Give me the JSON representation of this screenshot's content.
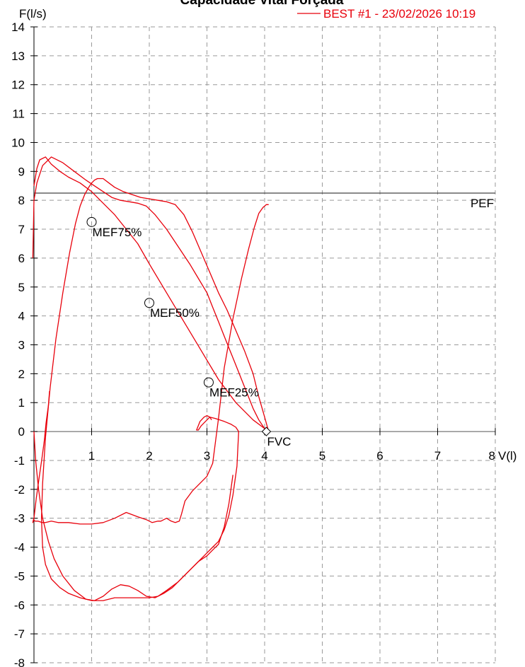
{
  "chart_data": {
    "type": "line",
    "title": "Capacidade Vital Forçada",
    "xlabel": "V(l)",
    "ylabel": "F(l/s)",
    "xlim": [
      0,
      8
    ],
    "ylim": [
      -8,
      14
    ],
    "x_ticks": [
      "1",
      "2",
      "3",
      "4",
      "5",
      "6",
      "7",
      "8"
    ],
    "y_ticks": [
      "14",
      "13",
      "12",
      "11",
      "10",
      "9",
      "8",
      "7",
      "6",
      "5",
      "4",
      "3",
      "2",
      "1",
      "0",
      "-1",
      "-2",
      "-3",
      "-4",
      "-5",
      "-6",
      "-7",
      "-8"
    ],
    "grid": true,
    "grid_style": "dashed",
    "legend": {
      "position": "top-right",
      "entries": [
        "BEST #1 - 23/02/2026 10:19"
      ]
    },
    "series": [
      {
        "name": "BEST #1 - 23/02/2026 10:19",
        "color": "#e8000b",
        "curves": [
          {
            "x": [
              0.27,
              0.25,
              0.21,
              0.18,
              0.14,
              0.09,
              0.04,
              0.0,
              -0.02,
              -0.01,
              0.02,
              0.07,
              0.14,
              0.2,
              0.3,
              0.42,
              0.6,
              0.8,
              1.0,
              1.2,
              1.4,
              1.6,
              1.8,
              1.95,
              2.05,
              2.15,
              2.2,
              2.3,
              2.38,
              2.45,
              2.52,
              2.56,
              2.62,
              2.75,
              2.9,
              3.0,
              3.1,
              3.2,
              3.3,
              3.45,
              3.6,
              3.72,
              3.82,
              3.9,
              3.97,
              4.03,
              4.07
            ],
            "y": [
              1.4,
              0.9,
              0.3,
              -0.3,
              -0.9,
              -1.6,
              -2.3,
              -3.0,
              -3.15,
              -3.05,
              -3.1,
              -3.1,
              -3.15,
              -3.15,
              -3.1,
              -3.15,
              -3.15,
              -3.2,
              -3.2,
              -3.15,
              -3.0,
              -2.8,
              -2.95,
              -3.05,
              -3.15,
              -3.1,
              -3.1,
              -3.0,
              -3.1,
              -3.15,
              -3.1,
              -2.85,
              -2.4,
              -2.05,
              -1.75,
              -1.55,
              -1.1,
              0.45,
              2.2,
              3.9,
              5.3,
              6.3,
              7.05,
              7.55,
              7.75,
              7.85,
              7.85
            ]
          },
          {
            "x": [
              4.07,
              4.0,
              3.9,
              3.8,
              3.65,
              3.5,
              3.35,
              3.2,
              3.05,
              2.9,
              2.75,
              2.6,
              2.45,
              2.3,
              2.15,
              2.0,
              1.85,
              1.7,
              1.55,
              1.4,
              1.3,
              1.2,
              1.1,
              1.05,
              1.0,
              0.95,
              0.88,
              0.8,
              0.72,
              0.62,
              0.5,
              0.38,
              0.28,
              0.2,
              0.15,
              0.13,
              0.15,
              0.2,
              0.3,
              0.45,
              0.6,
              0.8,
              1.0,
              1.2,
              1.4,
              1.55,
              1.7,
              1.85,
              2.0,
              2.15,
              2.3,
              2.5,
              2.7,
              2.85,
              3.0,
              3.1,
              3.2,
              3.3,
              3.38,
              3.45,
              3.52,
              3.55,
              3.5,
              3.42,
              3.3,
              3.15,
              3.05,
              3.0,
              2.95,
              2.9,
              2.85,
              2.82,
              2.88,
              2.95,
              3.0,
              3.05,
              3.08
            ],
            "y": [
              0.0,
              0.5,
              1.2,
              2.0,
              2.8,
              3.5,
              4.2,
              4.8,
              5.5,
              6.2,
              6.9,
              7.5,
              7.85,
              7.95,
              8.0,
              8.05,
              8.1,
              8.2,
              8.3,
              8.45,
              8.6,
              8.75,
              8.75,
              8.7,
              8.6,
              8.45,
              8.2,
              7.8,
              7.2,
              6.2,
              4.8,
              3.2,
              1.5,
              -0.2,
              -1.8,
              -3.0,
              -4.0,
              -4.6,
              -5.1,
              -5.4,
              -5.6,
              -5.75,
              -5.85,
              -5.85,
              -5.75,
              -5.75,
              -5.75,
              -5.75,
              -5.75,
              -5.7,
              -5.5,
              -5.2,
              -4.8,
              -4.5,
              -4.2,
              -4.0,
              -3.8,
              -3.4,
              -2.9,
              -2.2,
              -1.2,
              0.0,
              0.15,
              0.25,
              0.35,
              0.45,
              0.5,
              0.4,
              0.3,
              0.2,
              0.05,
              0.05,
              0.35,
              0.5,
              0.55,
              0.5,
              0.4
            ]
          },
          {
            "x": [
              0.0,
              0.05,
              0.1,
              0.2,
              0.3,
              0.45,
              0.6,
              0.8,
              1.0,
              1.2,
              1.4,
              1.6,
              1.8,
              2.0,
              2.3,
              2.6,
              2.9,
              3.2,
              3.5,
              3.8,
              4.07
            ],
            "y": [
              8.5,
              9.1,
              9.4,
              9.5,
              9.25,
              9.0,
              8.8,
              8.6,
              8.3,
              7.9,
              7.5,
              7.0,
              6.5,
              5.8,
              4.8,
              3.8,
              2.8,
              1.8,
              1.0,
              0.4,
              0.0
            ]
          },
          {
            "x": [
              -0.02,
              -0.01,
              0.0,
              0.05,
              0.15,
              0.3,
              0.5,
              0.7,
              0.9,
              1.05,
              1.2,
              1.35,
              1.5,
              1.65,
              1.8,
              1.95,
              2.1,
              2.3,
              2.5,
              2.7,
              2.85,
              3.0,
              3.1,
              3.2,
              3.3,
              3.4,
              3.5,
              3.6,
              3.7,
              3.8,
              3.9,
              4.0,
              4.07
            ],
            "y": [
              6.0,
              7.0,
              8.0,
              8.6,
              9.2,
              9.5,
              9.3,
              9.0,
              8.7,
              8.5,
              8.3,
              8.1,
              8.0,
              7.95,
              7.9,
              7.8,
              7.5,
              7.0,
              6.4,
              5.8,
              5.3,
              4.8,
              4.3,
              3.8,
              3.3,
              2.8,
              2.3,
              1.8,
              1.3,
              0.8,
              0.4,
              0.1,
              0.0
            ]
          },
          {
            "x": [
              0.0,
              0.03,
              0.08,
              0.15,
              0.25,
              0.35,
              0.5,
              0.7,
              0.9,
              1.05,
              1.2,
              1.35,
              1.5,
              1.65,
              1.8,
              1.95,
              2.1,
              2.25,
              2.4,
              2.55,
              2.7,
              2.85,
              3.0,
              3.1,
              3.2,
              3.3,
              3.38,
              3.45
            ],
            "y": [
              0.0,
              -1.0,
              -2.0,
              -3.0,
              -3.8,
              -4.4,
              -5.0,
              -5.5,
              -5.8,
              -5.85,
              -5.7,
              -5.45,
              -5.3,
              -5.35,
              -5.5,
              -5.7,
              -5.75,
              -5.6,
              -5.4,
              -5.1,
              -4.8,
              -4.5,
              -4.3,
              -4.1,
              -3.9,
              -3.3,
              -2.5,
              -1.5
            ]
          }
        ]
      }
    ],
    "reference_lines": [
      {
        "label": "PEF",
        "y": 8.25
      }
    ],
    "markers": [
      {
        "label": "MEF75%",
        "x": 1.0,
        "y": 7.25,
        "shape": "circle"
      },
      {
        "label": "MEF50%",
        "x": 2.0,
        "y": 4.45,
        "shape": "circle"
      },
      {
        "label": "MEF25%",
        "x": 3.03,
        "y": 1.7,
        "shape": "circle"
      },
      {
        "label": "FVC",
        "x": 4.03,
        "y": 0.0,
        "shape": "diamond"
      }
    ]
  }
}
